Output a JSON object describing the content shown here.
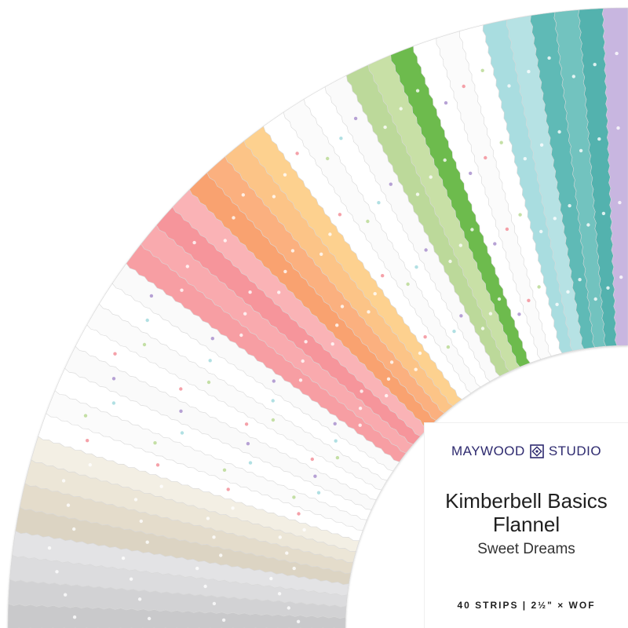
{
  "product": {
    "brand": "MAYWOOD",
    "brand_suffix": "STUDIO",
    "brand_logo_icon": "quilt-block-logo-icon",
    "brand_color": "#2e2a6f",
    "title_line1": "Kimberbell Basics",
    "title_line2": "Flannel",
    "subtitle": "Sweet Dreams",
    "spec": "40 STRIPS | 2½\" × WOF"
  },
  "fan": {
    "strip_colors": [
      "#c9c9cb",
      "#d2d2d4",
      "#dcdcde",
      "#e3e3e5",
      "#dcd4c3",
      "#e4dccb",
      "#ece6d7",
      "#f3efe4",
      "#ffffff",
      "#fbfbfb",
      "#ffffff",
      "#fafafa",
      "#ffffff",
      "#fbfbfb",
      "#ffffff",
      "#fafafa",
      "#f79ea3",
      "#f9aaae",
      "#f6959b",
      "#fab3b6",
      "#f9a270",
      "#fbb07f",
      "#fcc487",
      "#fdd18f",
      "#ffffff",
      "#fbfbfb",
      "#ffffff",
      "#fafafa",
      "#bcd99a",
      "#c8e0a6",
      "#6dbb4e",
      "#ffffff",
      "#fbfbfb",
      "#ffffff",
      "#a9dde0",
      "#b6e2e4",
      "#5fbab6",
      "#72c3bf",
      "#52b2ae",
      "#c8b6e0"
    ],
    "dot_colors": [
      "#ffffff",
      "#f28a93",
      "#b7d890",
      "#9ed8dc",
      "#a58bcb"
    ]
  }
}
